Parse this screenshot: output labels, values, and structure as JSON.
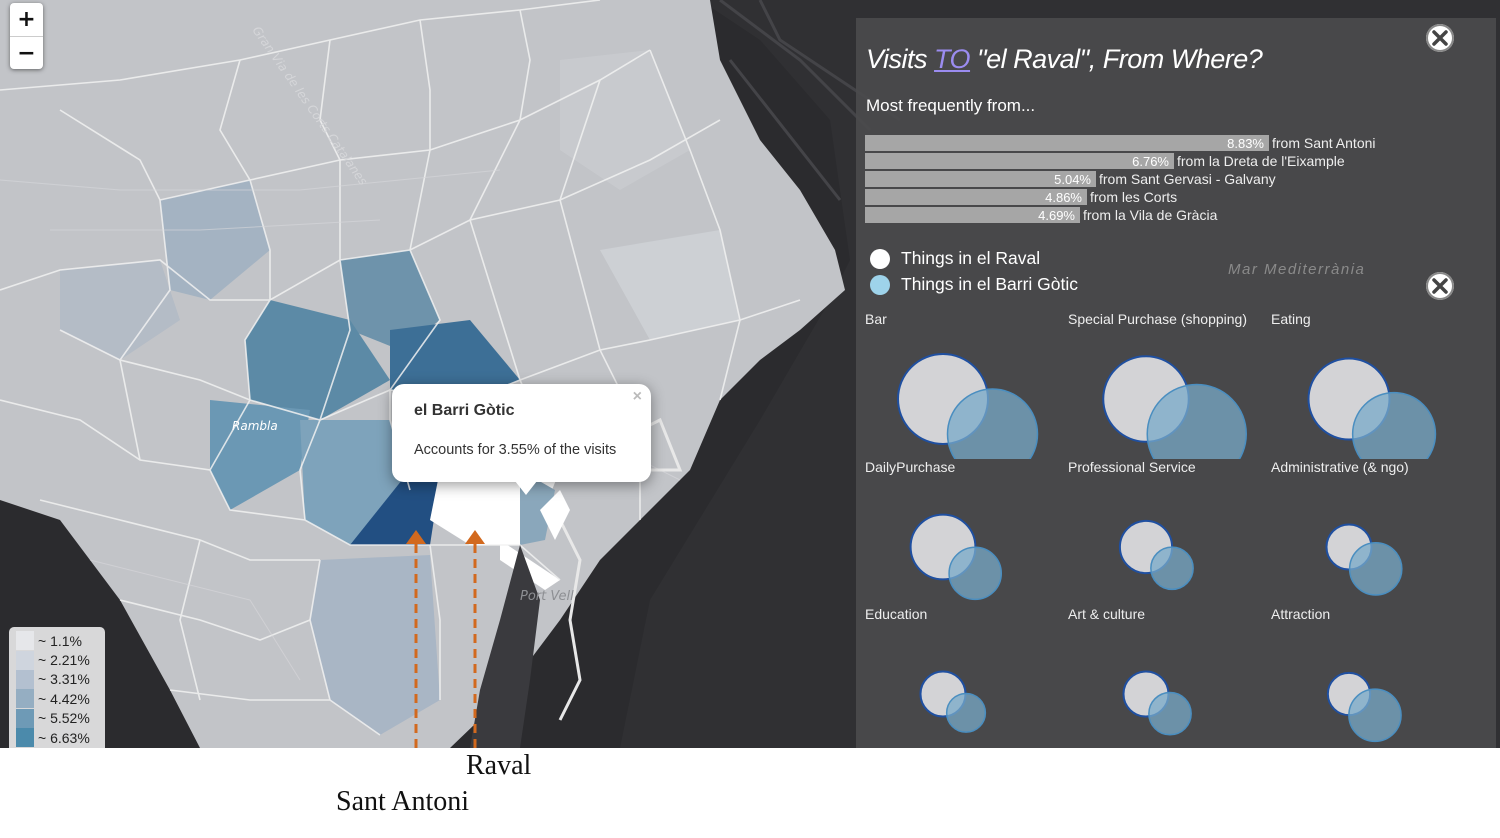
{
  "map": {
    "zoom_in_label": "+",
    "zoom_out_label": "−",
    "legend": [
      {
        "label": "~ 1.1%",
        "color": "#e6e7ea"
      },
      {
        "label": "~ 2.21%",
        "color": "#cfd5de"
      },
      {
        "label": "~ 3.31%",
        "color": "#b3c0d0"
      },
      {
        "label": "~ 4.42%",
        "color": "#95aec2"
      },
      {
        "label": "~ 5.52%",
        "color": "#6e9ab6"
      },
      {
        "label": "~ 6.63%",
        "color": "#4b8aab"
      }
    ],
    "popup": {
      "title": "el Barri Gòtic",
      "text": "Accounts for 3.55% of the visits",
      "close": "×"
    },
    "street_labels": [
      "Gran Via de les Corts Catalanes",
      "Rambla",
      "Port Vell"
    ]
  },
  "panel": {
    "title_before": "Visits ",
    "title_link": "TO",
    "title_after": " \"el Raval\", From Where?",
    "subtitle": "Most frequently from...",
    "sea_label": "Mar Mediterrània",
    "top_origins": [
      {
        "pct_label": "8.83%",
        "value": 8.83,
        "label": "from Sant Antoni"
      },
      {
        "pct_label": "6.76%",
        "value": 6.76,
        "label": "from la Dreta de l'Eixample"
      },
      {
        "pct_label": "5.04%",
        "value": 5.04,
        "label": "from Sant Gervasi - Galvany"
      },
      {
        "pct_label": "4.86%",
        "value": 4.86,
        "label": "from les Corts"
      },
      {
        "pct_label": "4.69%",
        "value": 4.69,
        "label": "from la Vila de Gràcia"
      }
    ],
    "key": [
      {
        "label": "Things in el Raval",
        "color": "#ffffff"
      },
      {
        "label": "Things in el Barri Gòtic",
        "color": "#9ed3ea"
      }
    ],
    "categories": [
      {
        "label": "Bar",
        "raval": 1.0,
        "gotic": 1.0
      },
      {
        "label": "Special Purchase (shopping)",
        "raval": 0.95,
        "gotic": 1.1
      },
      {
        "label": "Eating",
        "raval": 0.9,
        "gotic": 0.92
      },
      {
        "label": "DailyPurchase",
        "raval": 0.72,
        "gotic": 0.58
      },
      {
        "label": "Professional Service",
        "raval": 0.58,
        "gotic": 0.47
      },
      {
        "label": "Administrative (& ngo)",
        "raval": 0.5,
        "gotic": 0.58
      },
      {
        "label": "Education",
        "raval": 0.5,
        "gotic": 0.43
      },
      {
        "label": "Art & culture",
        "raval": 0.5,
        "gotic": 0.47
      },
      {
        "label": "Attraction",
        "raval": 0.47,
        "gotic": 0.58
      }
    ]
  },
  "annotations": {
    "sant_antoni": "Sant Antoni",
    "raval": "Raval"
  }
}
